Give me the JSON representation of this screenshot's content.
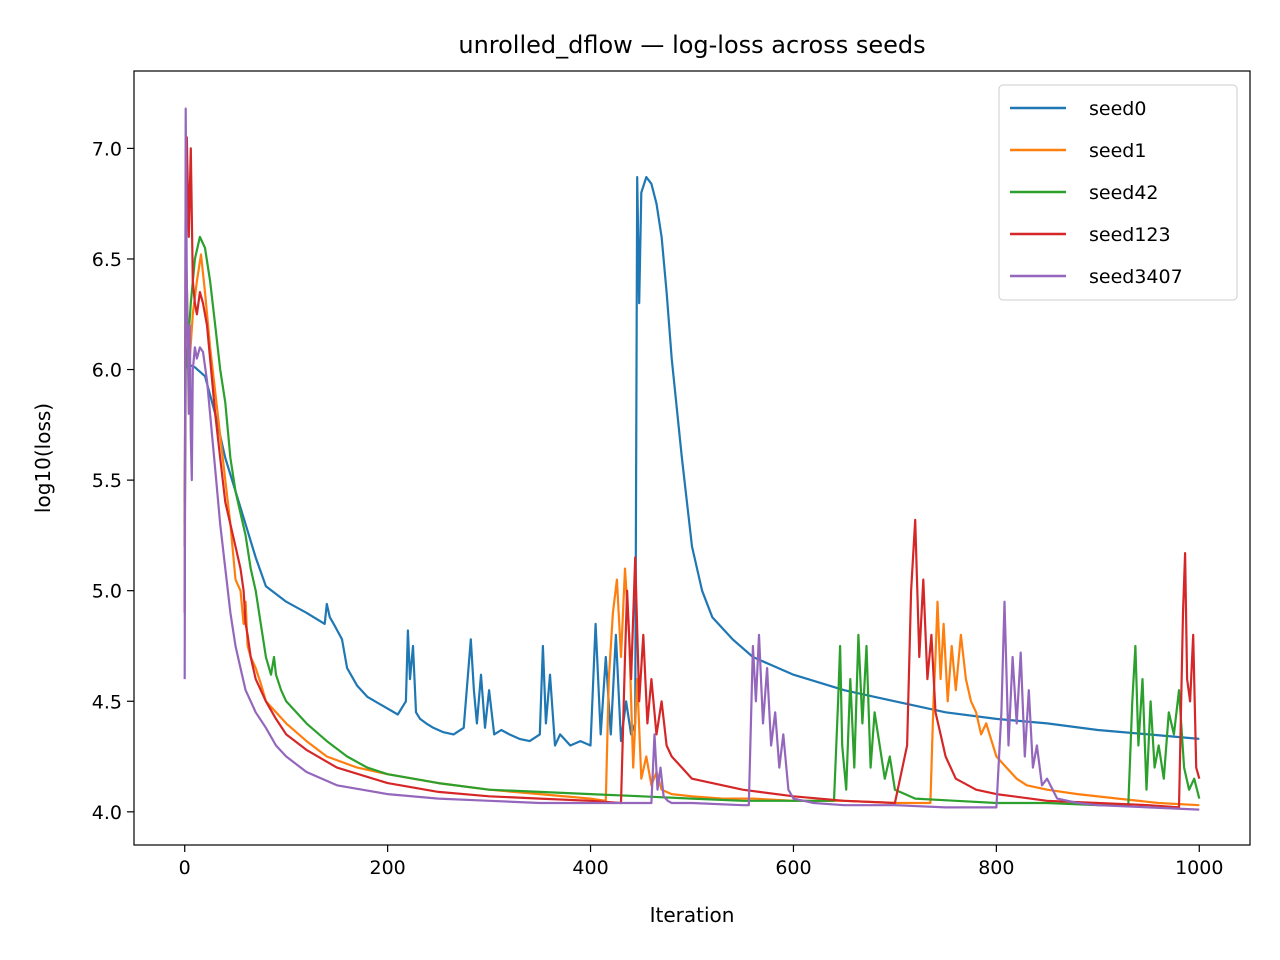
{
  "chart_data": {
    "type": "line",
    "title": "unrolled_dflow — log-loss across seeds",
    "xlabel": "Iteration",
    "ylabel": "log10(loss)",
    "xlim": [
      -50,
      1050
    ],
    "ylim": [
      3.85,
      7.35
    ],
    "xticks": [
      0,
      200,
      400,
      600,
      800,
      1000
    ],
    "xtick_labels": [
      "0",
      "200",
      "400",
      "600",
      "800",
      "1000"
    ],
    "yticks": [
      4.0,
      4.5,
      5.0,
      5.5,
      6.0,
      6.5,
      7.0
    ],
    "ytick_labels": [
      "4.0",
      "4.5",
      "5.0",
      "5.5",
      "6.0",
      "6.5",
      "7.0"
    ],
    "grid": false,
    "legend_position": "top-right",
    "series": [
      {
        "name": "seed0",
        "color": "#1f77b4",
        "x": [
          0,
          1,
          3,
          5,
          10,
          20,
          30,
          40,
          50,
          60,
          70,
          80,
          100,
          120,
          138,
          140,
          143,
          148,
          155,
          160,
          170,
          180,
          195,
          210,
          218,
          220,
          222,
          225,
          228,
          232,
          238,
          245,
          255,
          265,
          275,
          282,
          285,
          288,
          292,
          296,
          300,
          305,
          312,
          320,
          330,
          340,
          350,
          353,
          356,
          360,
          365,
          370,
          380,
          390,
          400,
          405,
          410,
          415,
          420,
          425,
          430,
          435,
          440,
          444,
          446,
          448,
          450,
          455,
          460,
          465,
          470,
          475,
          480,
          490,
          500,
          510,
          520,
          540,
          560,
          580,
          600,
          650,
          700,
          750,
          800,
          850,
          900,
          950,
          1000
        ],
        "y": [
          5.4,
          6.3,
          6.15,
          6.02,
          6.01,
          5.97,
          5.8,
          5.6,
          5.45,
          5.3,
          5.15,
          5.02,
          4.95,
          4.9,
          4.85,
          4.94,
          4.88,
          4.84,
          4.78,
          4.65,
          4.57,
          4.52,
          4.48,
          4.44,
          4.5,
          4.82,
          4.6,
          4.75,
          4.45,
          4.42,
          4.4,
          4.38,
          4.36,
          4.35,
          4.38,
          4.78,
          4.55,
          4.4,
          4.62,
          4.38,
          4.55,
          4.35,
          4.37,
          4.35,
          4.33,
          4.32,
          4.35,
          4.75,
          4.4,
          4.62,
          4.3,
          4.35,
          4.3,
          4.32,
          4.3,
          4.85,
          4.35,
          4.7,
          4.35,
          4.8,
          4.32,
          4.5,
          4.35,
          4.4,
          6.87,
          6.3,
          6.8,
          6.87,
          6.84,
          6.75,
          6.6,
          6.35,
          6.05,
          5.6,
          5.2,
          5.0,
          4.88,
          4.78,
          4.7,
          4.66,
          4.62,
          4.55,
          4.5,
          4.45,
          4.42,
          4.4,
          4.37,
          4.35,
          4.33
        ]
      },
      {
        "name": "seed1",
        "color": "#ff7f0e",
        "x": [
          0,
          1,
          3,
          5,
          8,
          12,
          16,
          20,
          25,
          30,
          35,
          40,
          45,
          50,
          55,
          58,
          60,
          62,
          65,
          70,
          75,
          80,
          90,
          100,
          120,
          140,
          170,
          200,
          250,
          300,
          350,
          400,
          415,
          418,
          422,
          426,
          430,
          434,
          438,
          442,
          446,
          450,
          455,
          460,
          465,
          470,
          480,
          500,
          530,
          560,
          600,
          650,
          700,
          735,
          738,
          740,
          742,
          745,
          748,
          752,
          756,
          760,
          765,
          770,
          775,
          780,
          785,
          790,
          800,
          810,
          820,
          830,
          850,
          880,
          920,
          960,
          1000
        ],
        "y": [
          5.3,
          6.6,
          6.2,
          6.05,
          6.25,
          6.4,
          6.52,
          6.35,
          6.1,
          5.9,
          5.7,
          5.5,
          5.3,
          5.05,
          5.0,
          4.85,
          4.95,
          4.75,
          4.7,
          4.65,
          4.58,
          4.5,
          4.45,
          4.4,
          4.32,
          4.25,
          4.2,
          4.17,
          4.13,
          4.1,
          4.08,
          4.06,
          4.05,
          4.6,
          4.9,
          5.05,
          4.7,
          5.1,
          4.8,
          4.2,
          4.6,
          4.15,
          4.25,
          4.12,
          4.18,
          4.1,
          4.08,
          4.07,
          4.06,
          4.06,
          4.05,
          4.05,
          4.04,
          4.04,
          4.5,
          4.7,
          4.95,
          4.6,
          4.85,
          4.5,
          4.75,
          4.55,
          4.8,
          4.6,
          4.5,
          4.45,
          4.35,
          4.4,
          4.25,
          4.2,
          4.15,
          4.12,
          4.1,
          4.08,
          4.06,
          4.04,
          4.03
        ]
      },
      {
        "name": "seed42",
        "color": "#2ca02c",
        "x": [
          0,
          1,
          3,
          6,
          10,
          15,
          20,
          25,
          30,
          35,
          40,
          45,
          50,
          55,
          60,
          65,
          70,
          75,
          80,
          85,
          88,
          90,
          95,
          100,
          110,
          120,
          140,
          160,
          180,
          200,
          250,
          300,
          350,
          400,
          450,
          500,
          550,
          600,
          640,
          644,
          646,
          648,
          652,
          656,
          660,
          664,
          668,
          672,
          676,
          680,
          685,
          690,
          695,
          700,
          710,
          720,
          760,
          800,
          850,
          900,
          930,
          934,
          937,
          940,
          944,
          948,
          952,
          956,
          960,
          965,
          970,
          975,
          980,
          985,
          990,
          995,
          1000
        ],
        "y": [
          5.2,
          6.0,
          6.1,
          6.3,
          6.5,
          6.6,
          6.55,
          6.4,
          6.2,
          6.0,
          5.85,
          5.6,
          5.45,
          5.35,
          5.25,
          5.1,
          5.0,
          4.85,
          4.7,
          4.62,
          4.7,
          4.62,
          4.55,
          4.5,
          4.45,
          4.4,
          4.32,
          4.25,
          4.2,
          4.17,
          4.13,
          4.1,
          4.09,
          4.08,
          4.07,
          4.06,
          4.05,
          4.05,
          4.05,
          4.5,
          4.75,
          4.3,
          4.1,
          4.6,
          4.2,
          4.8,
          4.4,
          4.75,
          4.2,
          4.45,
          4.3,
          4.15,
          4.25,
          4.1,
          4.08,
          4.06,
          4.05,
          4.04,
          4.04,
          4.03,
          4.03,
          4.5,
          4.75,
          4.3,
          4.6,
          4.1,
          4.5,
          4.2,
          4.3,
          4.15,
          4.45,
          4.35,
          4.55,
          4.2,
          4.1,
          4.15,
          4.06
        ]
      },
      {
        "name": "seed123",
        "color": "#d62728",
        "x": [
          0,
          1,
          2,
          4,
          6,
          8,
          10,
          12,
          15,
          18,
          22,
          26,
          30,
          35,
          40,
          45,
          50,
          55,
          58,
          60,
          62,
          65,
          70,
          80,
          90,
          100,
          120,
          150,
          200,
          250,
          300,
          350,
          400,
          430,
          434,
          436,
          440,
          444,
          448,
          452,
          456,
          460,
          465,
          470,
          475,
          480,
          490,
          500,
          550,
          600,
          650,
          700,
          712,
          716,
          720,
          724,
          728,
          732,
          736,
          740,
          745,
          750,
          760,
          780,
          800,
          850,
          900,
          950,
          980,
          984,
          986,
          988,
          991,
          994,
          997,
          1000
        ],
        "y": [
          4.9,
          6.9,
          7.05,
          6.6,
          7.0,
          6.4,
          6.3,
          6.25,
          6.35,
          6.3,
          6.2,
          6.0,
          5.8,
          5.6,
          5.4,
          5.3,
          5.2,
          5.1,
          5.0,
          4.85,
          4.8,
          4.7,
          4.6,
          4.5,
          4.42,
          4.35,
          4.28,
          4.2,
          4.13,
          4.09,
          4.07,
          4.06,
          4.05,
          4.04,
          4.7,
          5.0,
          4.6,
          5.15,
          4.5,
          4.8,
          4.4,
          4.6,
          4.35,
          4.5,
          4.3,
          4.25,
          4.2,
          4.15,
          4.1,
          4.07,
          4.05,
          4.04,
          4.3,
          5.0,
          5.32,
          4.7,
          5.05,
          4.6,
          4.8,
          4.45,
          4.35,
          4.25,
          4.15,
          4.1,
          4.08,
          4.05,
          4.04,
          4.03,
          4.02,
          4.9,
          5.17,
          4.6,
          4.5,
          4.8,
          4.2,
          4.15
        ]
      },
      {
        "name": "seed3407",
        "color": "#9467bd",
        "x": [
          0,
          1,
          2,
          3,
          4,
          5,
          6,
          7,
          8,
          10,
          12,
          15,
          18,
          22,
          26,
          30,
          35,
          40,
          45,
          50,
          55,
          60,
          65,
          70,
          80,
          90,
          100,
          120,
          150,
          200,
          250,
          300,
          350,
          400,
          460,
          463,
          466,
          469,
          472,
          476,
          480,
          500,
          550,
          556,
          560,
          563,
          566,
          570,
          574,
          578,
          582,
          586,
          590,
          595,
          600,
          620,
          650,
          700,
          750,
          800,
          805,
          808,
          812,
          816,
          820,
          824,
          828,
          832,
          836,
          840,
          845,
          850,
          860,
          880,
          900,
          950,
          1000
        ],
        "y": [
          4.6,
          7.18,
          6.4,
          6.1,
          5.8,
          6.2,
          5.7,
          5.5,
          6.0,
          6.1,
          6.05,
          6.1,
          6.08,
          5.95,
          5.75,
          5.55,
          5.3,
          5.1,
          4.9,
          4.75,
          4.65,
          4.55,
          4.5,
          4.45,
          4.38,
          4.3,
          4.25,
          4.18,
          4.12,
          4.08,
          4.06,
          4.05,
          4.04,
          4.04,
          4.04,
          4.35,
          4.1,
          4.2,
          4.07,
          4.05,
          4.04,
          4.04,
          4.03,
          4.03,
          4.75,
          4.5,
          4.8,
          4.4,
          4.65,
          4.3,
          4.45,
          4.2,
          4.35,
          4.1,
          4.06,
          4.04,
          4.03,
          4.03,
          4.02,
          4.02,
          4.45,
          4.95,
          4.3,
          4.7,
          4.4,
          4.72,
          4.25,
          4.55,
          4.2,
          4.3,
          4.12,
          4.15,
          4.06,
          4.04,
          4.03,
          4.02,
          4.01
        ]
      }
    ]
  }
}
